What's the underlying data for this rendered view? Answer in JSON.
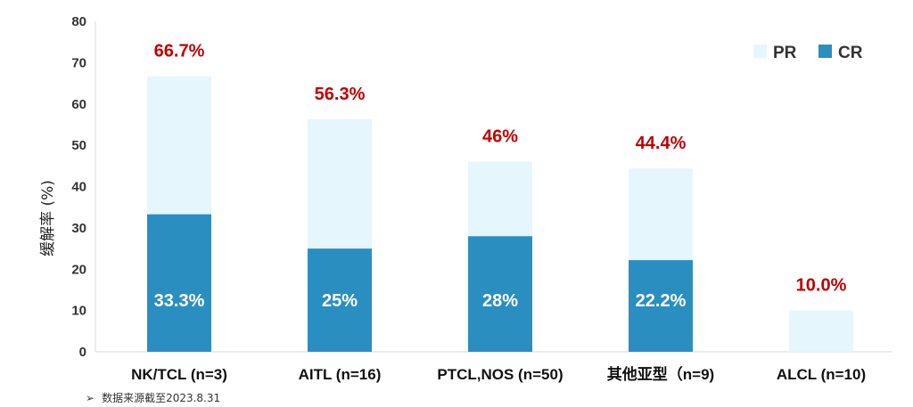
{
  "chart_data": {
    "type": "bar",
    "stacked": true,
    "categories": [
      "NK/TCL (n=3)",
      "AITL (n=16)",
      "PTCL,NOS (n=50)",
      "其他亚型（n=9)",
      "ALCL (n=10)"
    ],
    "series": [
      {
        "name": "CR",
        "values": [
          33.3,
          25,
          28,
          22.2,
          0
        ],
        "color": "#2a8fc0"
      },
      {
        "name": "PR",
        "values": [
          33.4,
          31.3,
          18,
          22.2,
          10
        ],
        "color": "#e6f6fd"
      }
    ],
    "totals": [
      66.7,
      56.3,
      46,
      44.4,
      10
    ],
    "total_labels": [
      "66.7%",
      "56.3%",
      "46%",
      "44.4%",
      "10.0%"
    ],
    "cr_labels": [
      "33.3%",
      "25%",
      "28%",
      "22.2%",
      ""
    ],
    "ylabel": "缓解率 (%)",
    "ylim": [
      0,
      80
    ],
    "yticks": [
      0,
      10,
      20,
      30,
      40,
      50,
      60,
      70,
      80
    ],
    "legend_order": [
      "PR",
      "CR"
    ],
    "legend_position": "top-right",
    "grid": false,
    "colors": {
      "cr": "#2a8fc0",
      "pr": "#e6f6fd",
      "total_label": "#c00000",
      "axis": "#d9d9d9"
    }
  },
  "footnote": {
    "arrow": "➢",
    "text": "数据来源截至2023.8.31"
  }
}
